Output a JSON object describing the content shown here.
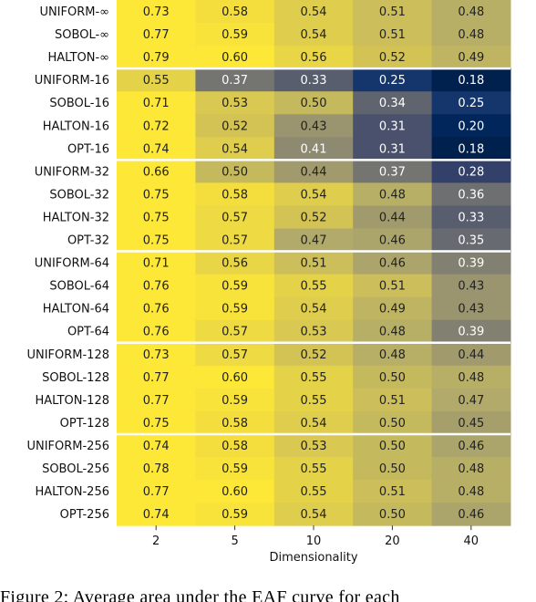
{
  "chart_data": {
    "type": "heatmap",
    "xlabel": "Dimensionality",
    "columns": [
      "2",
      "5",
      "10",
      "20",
      "40"
    ],
    "rows": [
      {
        "label": "UNIFORM-∞",
        "values": [
          0.73,
          0.58,
          0.54,
          0.51,
          0.48
        ]
      },
      {
        "label": "SOBOL-∞",
        "values": [
          0.77,
          0.59,
          0.54,
          0.51,
          0.48
        ]
      },
      {
        "label": "HALTON-∞",
        "values": [
          0.79,
          0.6,
          0.56,
          0.52,
          0.49
        ]
      },
      {
        "label": "UNIFORM-16",
        "values": [
          0.55,
          0.37,
          0.33,
          0.25,
          0.18
        ]
      },
      {
        "label": "SOBOL-16",
        "values": [
          0.71,
          0.53,
          0.5,
          0.34,
          0.25
        ]
      },
      {
        "label": "HALTON-16",
        "values": [
          0.72,
          0.52,
          0.43,
          0.31,
          0.2
        ]
      },
      {
        "label": "OPT-16",
        "values": [
          0.74,
          0.54,
          0.41,
          0.31,
          0.18
        ]
      },
      {
        "label": "UNIFORM-32",
        "values": [
          0.66,
          0.5,
          0.44,
          0.37,
          0.28
        ]
      },
      {
        "label": "SOBOL-32",
        "values": [
          0.75,
          0.58,
          0.54,
          0.48,
          0.36
        ]
      },
      {
        "label": "HALTON-32",
        "values": [
          0.75,
          0.57,
          0.52,
          0.44,
          0.33
        ]
      },
      {
        "label": "OPT-32",
        "values": [
          0.75,
          0.57,
          0.47,
          0.46,
          0.35
        ]
      },
      {
        "label": "UNIFORM-64",
        "values": [
          0.71,
          0.56,
          0.51,
          0.46,
          0.39
        ]
      },
      {
        "label": "SOBOL-64",
        "values": [
          0.76,
          0.59,
          0.55,
          0.51,
          0.43
        ]
      },
      {
        "label": "HALTON-64",
        "values": [
          0.76,
          0.59,
          0.54,
          0.49,
          0.43
        ]
      },
      {
        "label": "OPT-64",
        "values": [
          0.76,
          0.57,
          0.53,
          0.48,
          0.39
        ]
      },
      {
        "label": "UNIFORM-128",
        "values": [
          0.73,
          0.57,
          0.52,
          0.48,
          0.44
        ]
      },
      {
        "label": "SOBOL-128",
        "values": [
          0.77,
          0.6,
          0.55,
          0.5,
          0.48
        ]
      },
      {
        "label": "HALTON-128",
        "values": [
          0.77,
          0.59,
          0.55,
          0.51,
          0.47
        ]
      },
      {
        "label": "OPT-128",
        "values": [
          0.75,
          0.58,
          0.54,
          0.5,
          0.45
        ]
      },
      {
        "label": "UNIFORM-256",
        "values": [
          0.74,
          0.58,
          0.53,
          0.5,
          0.46
        ]
      },
      {
        "label": "SOBOL-256",
        "values": [
          0.78,
          0.59,
          0.55,
          0.5,
          0.48
        ]
      },
      {
        "label": "HALTON-256",
        "values": [
          0.77,
          0.6,
          0.55,
          0.51,
          0.48
        ]
      },
      {
        "label": "OPT-256",
        "values": [
          0.74,
          0.59,
          0.54,
          0.5,
          0.46
        ]
      }
    ],
    "group_separators_after_rows": [
      2,
      6,
      10,
      14,
      18
    ],
    "colormap": "cividis",
    "grid": false
  },
  "caption": "Figure 2: Average area under the EAF curve for each"
}
